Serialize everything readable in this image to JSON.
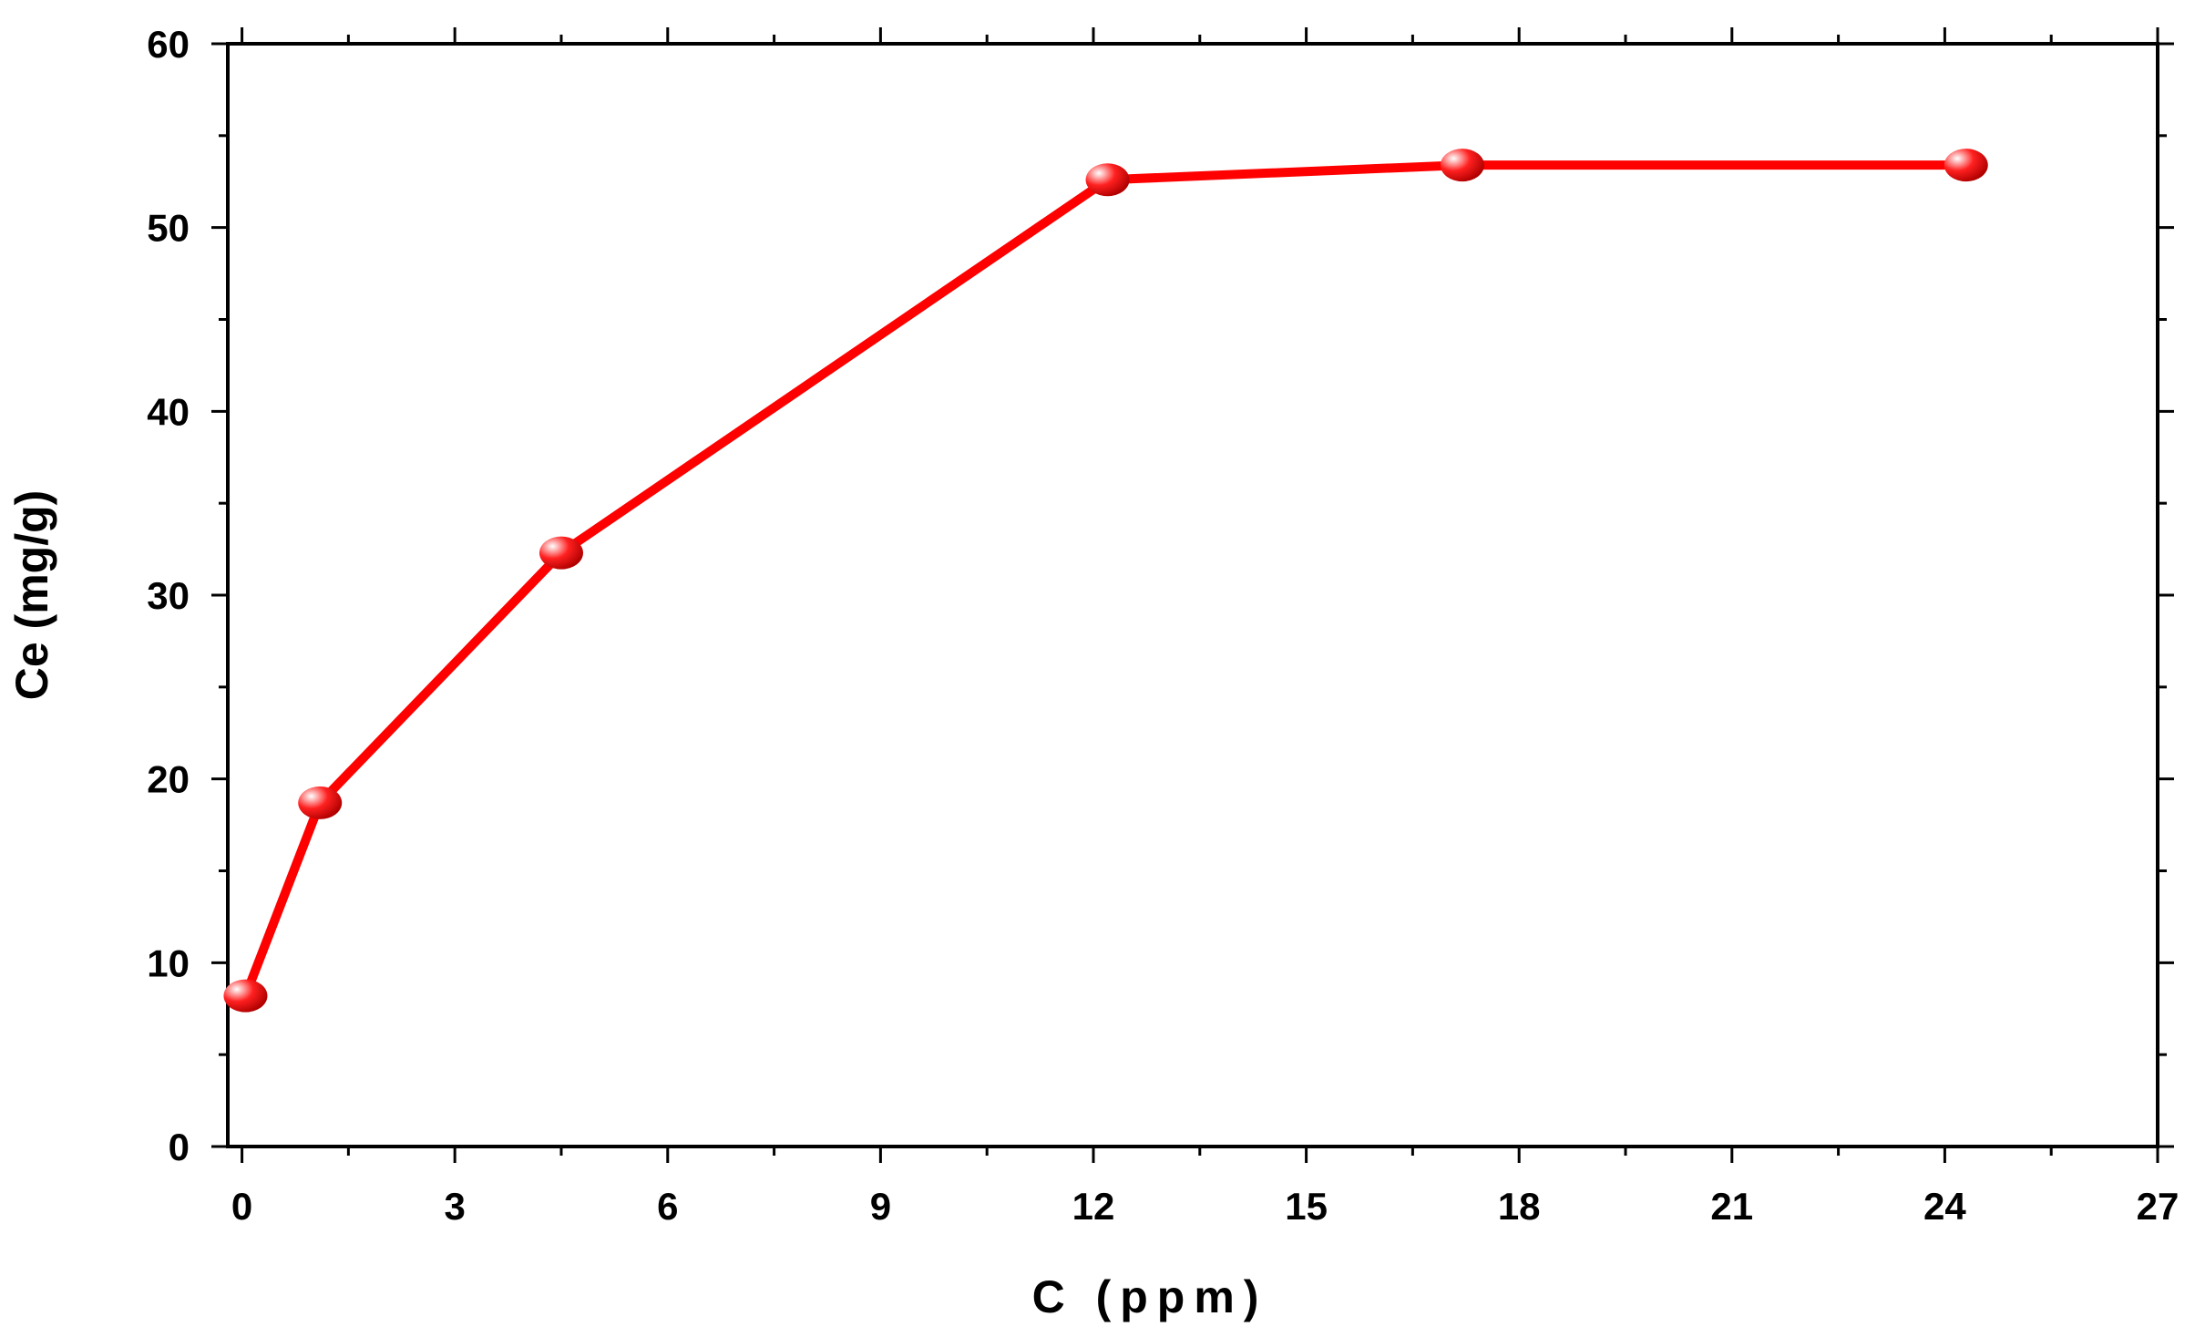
{
  "chart_data": {
    "type": "line",
    "title": "",
    "xlabel": "C (ppm)",
    "ylabel": "Ce (mg/g)",
    "xlim": [
      -0.2,
      27
    ],
    "ylim": [
      0,
      60
    ],
    "xticks": [
      0,
      3,
      6,
      9,
      12,
      15,
      18,
      21,
      24,
      27
    ],
    "xtick_labels": [
      "0",
      "3",
      "6",
      "9",
      "12",
      "15",
      "18",
      "21",
      "24",
      "27"
    ],
    "yticks": [
      0,
      10,
      20,
      30,
      40,
      50,
      60
    ],
    "ytick_labels": [
      "0",
      "10",
      "20",
      "30",
      "40",
      "50",
      "60"
    ],
    "grid": false,
    "series": [
      {
        "x": [
          0.05,
          1.1,
          4.5,
          12.2,
          17.2,
          24.3
        ],
        "y": [
          8.2,
          18.7,
          32.3,
          52.6,
          53.4,
          53.4
        ],
        "color": "#ff0000",
        "marker": "sphere"
      }
    ]
  }
}
